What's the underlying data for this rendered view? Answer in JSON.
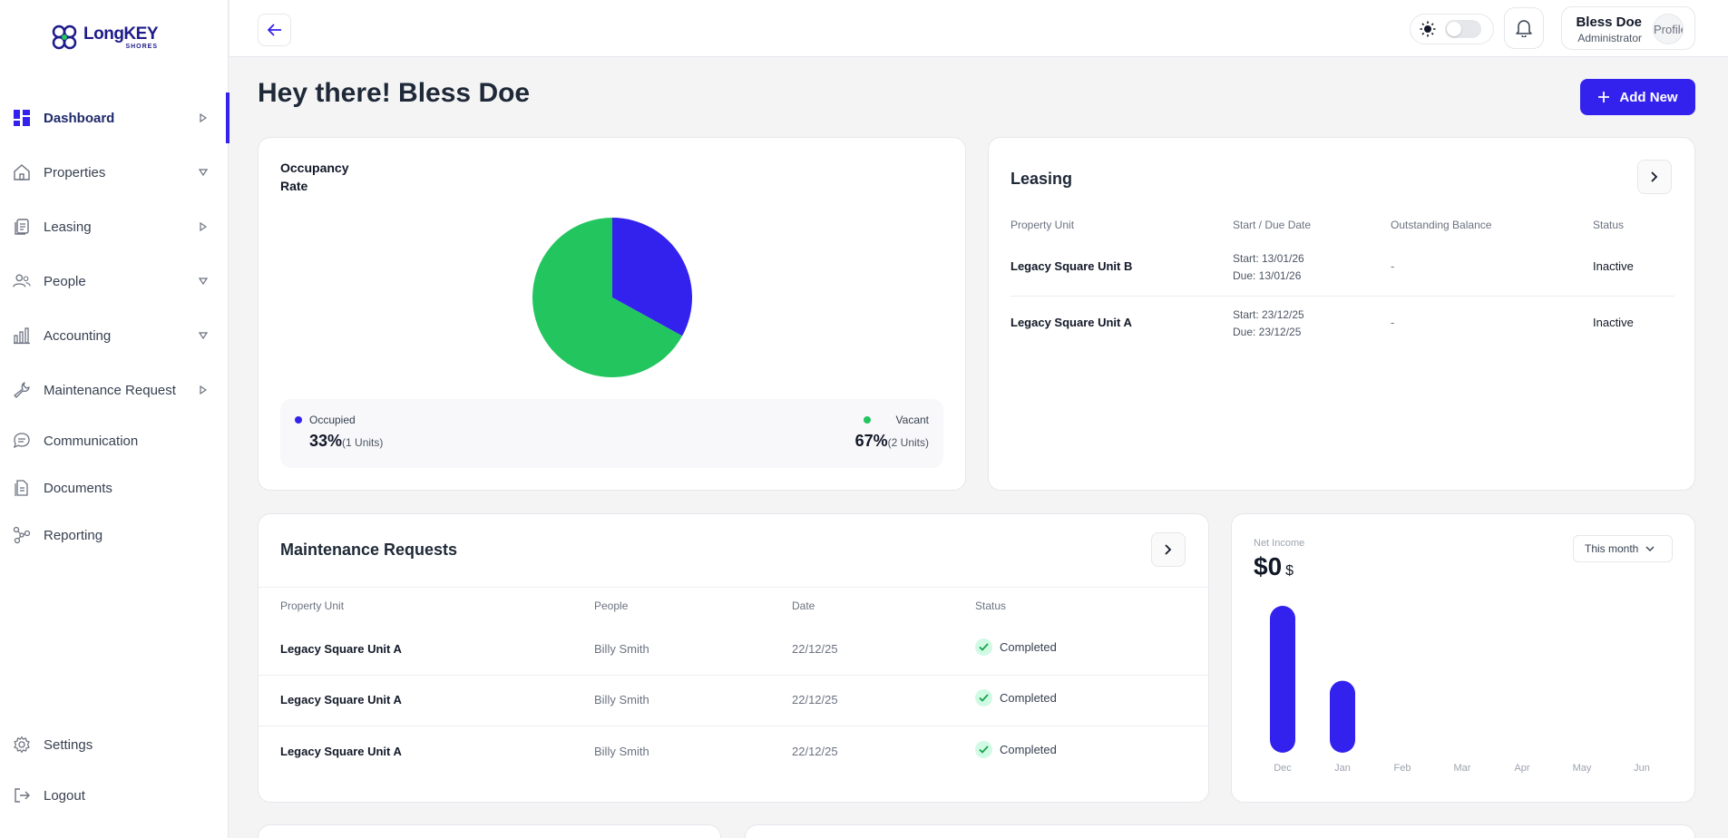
{
  "brand": {
    "name": "LongKEY",
    "tagline": "SHORES"
  },
  "sidebar": {
    "items": [
      {
        "label": "Dashboard",
        "icon": "dashboard-icon",
        "caret": "right",
        "active": true
      },
      {
        "label": "Properties",
        "icon": "building-icon",
        "caret": "down"
      },
      {
        "label": "Leasing",
        "icon": "documents-stack-icon",
        "caret": "right"
      },
      {
        "label": "People",
        "icon": "people-icon",
        "caret": "down"
      },
      {
        "label": "Accounting",
        "icon": "bar-chart-icon",
        "caret": "down"
      },
      {
        "label": "Maintenance Request",
        "icon": "wrench-icon",
        "caret": "right"
      },
      {
        "label": "Communication",
        "icon": "chat-icon"
      },
      {
        "label": "Documents",
        "icon": "document-icon"
      },
      {
        "label": "Reporting",
        "icon": "network-icon"
      }
    ],
    "bottom": [
      {
        "label": "Settings",
        "icon": "gear-icon"
      },
      {
        "label": "Logout",
        "icon": "logout-icon"
      }
    ]
  },
  "topbar": {
    "user_name": "Bless Doe",
    "user_role": "Administrator",
    "avatar_alt": "Profile"
  },
  "header": {
    "greeting": "Hey there! Bless Doe",
    "add_button": "Add New"
  },
  "occupancy": {
    "title": "Occupancy Rate",
    "occupied_label": "Occupied",
    "occupied_pct": "33%",
    "occupied_units": "(1 Units)",
    "vacant_label": "Vacant",
    "vacant_pct": "67%",
    "vacant_units": "(2 Units)",
    "colors": {
      "occupied": "#3322ee",
      "vacant": "#22c55e"
    }
  },
  "chart_data": [
    {
      "type": "pie",
      "title": "Occupancy Rate",
      "categories": [
        "Occupied",
        "Vacant"
      ],
      "values": [
        33,
        67
      ],
      "colors": [
        "#3322ee",
        "#22c55e"
      ]
    },
    {
      "type": "bar",
      "title": "Net Income",
      "categories": [
        "Dec",
        "Jan",
        "Feb",
        "Mar",
        "Apr",
        "May",
        "Jun"
      ],
      "values": [
        100,
        49,
        0,
        0,
        0,
        0,
        0
      ],
      "color": "#3322ee"
    }
  ],
  "leasing": {
    "title": "Leasing",
    "headers": [
      "Property Unit",
      "Start / Due Date",
      "Outstanding Balance",
      "Status"
    ],
    "rows": [
      {
        "unit": "Legacy Square Unit B",
        "start": "Start: 13/01/26",
        "due": "Due: 13/01/26",
        "balance": "-",
        "status": "Inactive"
      },
      {
        "unit": "Legacy Square Unit A",
        "start": "Start: 23/12/25",
        "due": "Due: 23/12/25",
        "balance": "-",
        "status": "Inactive"
      }
    ]
  },
  "maintenance": {
    "title": "Maintenance Requests",
    "headers": [
      "Property Unit",
      "People",
      "Date",
      "Status"
    ],
    "rows": [
      {
        "unit": "Legacy Square Unit A",
        "people": "Billy Smith",
        "date": "22/12/25",
        "status": "Completed"
      },
      {
        "unit": "Legacy Square Unit A",
        "people": "Billy Smith",
        "date": "22/12/25",
        "status": "Completed"
      },
      {
        "unit": "Legacy Square Unit A",
        "people": "Billy Smith",
        "date": "22/12/25",
        "status": "Completed"
      }
    ]
  },
  "net_income": {
    "label": "Net Income",
    "value": "$0",
    "currency": "$",
    "period": "This month"
  }
}
